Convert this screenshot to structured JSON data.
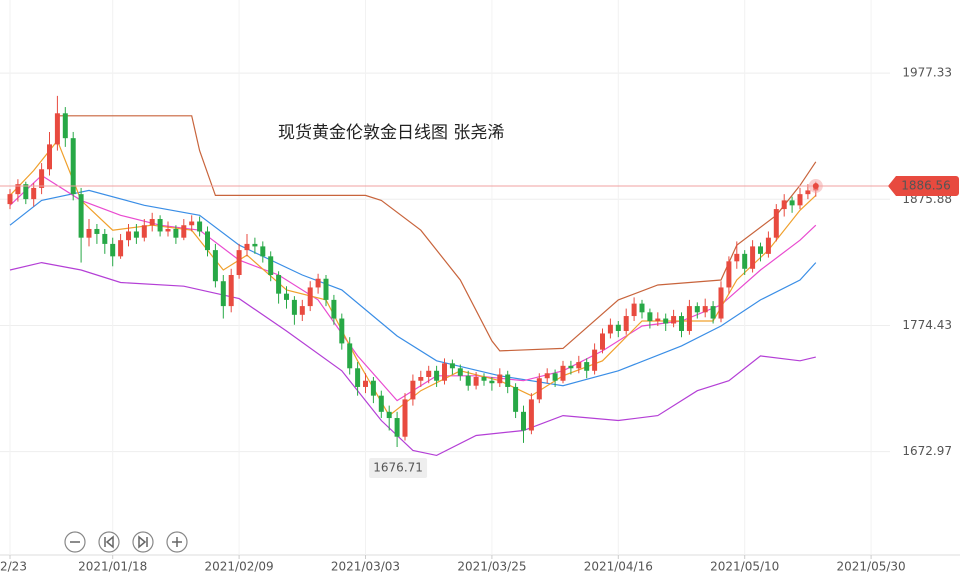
{
  "chart_data": {
    "type": "candlestick",
    "title": "现货黄金伦敦金日线图 张尧浠",
    "categories": [
      "2/23",
      null,
      null,
      null,
      null,
      null,
      null,
      null,
      null,
      null,
      null,
      null,
      null,
      "2021/01/18",
      null,
      null,
      null,
      null,
      null,
      null,
      null,
      null,
      null,
      null,
      null,
      null,
      null,
      null,
      null,
      "2021/02/09",
      null,
      null,
      null,
      null,
      null,
      null,
      null,
      null,
      null,
      null,
      null,
      null,
      null,
      null,
      null,
      "2021/03/03",
      null,
      null,
      null,
      null,
      null,
      null,
      null,
      null,
      null,
      null,
      null,
      null,
      null,
      null,
      null,
      "2021/03/25",
      null,
      null,
      null,
      null,
      null,
      null,
      null,
      null,
      null,
      null,
      null,
      null,
      null,
      null,
      null,
      "2021/04/16",
      null,
      null,
      null,
      null,
      null,
      null,
      null,
      null,
      null,
      null,
      null,
      null,
      null,
      null,
      null,
      "2021/05/10",
      null,
      null,
      null,
      null,
      null,
      null,
      null,
      null,
      null,
      null,
      null,
      null,
      null,
      null,
      null,
      "2021/05/30"
    ],
    "open": [
      1872,
      1880,
      1888,
      1876,
      1885,
      1900,
      1920,
      1945,
      1925,
      1880,
      1845,
      1852,
      1848,
      1840,
      1830,
      1843,
      1850,
      1845,
      1855,
      1860,
      1850,
      1852,
      1845,
      1855,
      1858,
      1850,
      1835,
      1810,
      1790,
      1815,
      1835,
      1840,
      1838,
      1830,
      1815,
      1800,
      1795,
      1783,
      1790,
      1805,
      1812,
      1795,
      1780,
      1760,
      1740,
      1725,
      1730,
      1718,
      1705,
      1700,
      1685,
      1715,
      1730,
      1733,
      1738,
      1730,
      1744,
      1740,
      1734,
      1726,
      1733,
      1730,
      1728,
      1735,
      1725,
      1705,
      1690,
      1715,
      1732,
      1736,
      1730,
      1742,
      1740,
      1745,
      1738,
      1755,
      1768,
      1775,
      1770,
      1782,
      1792,
      1785,
      1778,
      1780,
      1776,
      1782,
      1770,
      1790,
      1785,
      1790,
      1780,
      1805,
      1826,
      1832,
      1820,
      1838,
      1832,
      1845,
      1868,
      1875,
      1871,
      1880,
      1883,
      null,
      null,
      null,
      null,
      null,
      null,
      null
    ],
    "high": [
      1884,
      1892,
      1890,
      1889,
      1905,
      1930,
      1959,
      1950,
      1930,
      1885,
      1860,
      1856,
      1852,
      1845,
      1848,
      1856,
      1856,
      1860,
      1865,
      1863,
      1858,
      1855,
      1860,
      1863,
      1862,
      1854,
      1840,
      1815,
      1820,
      1840,
      1848,
      1845,
      1842,
      1834,
      1818,
      1806,
      1798,
      1795,
      1810,
      1816,
      1815,
      1799,
      1784,
      1765,
      1745,
      1736,
      1733,
      1722,
      1710,
      1705,
      1720,
      1735,
      1738,
      1742,
      1742,
      1748,
      1747,
      1743,
      1738,
      1737,
      1736,
      1733,
      1740,
      1738,
      1728,
      1710,
      1720,
      1736,
      1740,
      1739,
      1746,
      1746,
      1750,
      1748,
      1760,
      1772,
      1780,
      1778,
      1788,
      1797,
      1795,
      1788,
      1785,
      1784,
      1787,
      1785,
      1795,
      1793,
      1796,
      1794,
      1810,
      1830,
      1842,
      1835,
      1843,
      1841,
      1850,
      1872,
      1880,
      1878,
      1885,
      1888,
      1890,
      null,
      null,
      null,
      null,
      null,
      null,
      null
    ],
    "low": [
      1868,
      1874,
      1872,
      1870,
      1880,
      1895,
      1915,
      1918,
      1875,
      1825,
      1838,
      1840,
      1832,
      1822,
      1828,
      1838,
      1840,
      1842,
      1850,
      1846,
      1846,
      1840,
      1843,
      1850,
      1846,
      1830,
      1805,
      1780,
      1785,
      1812,
      1830,
      1832,
      1825,
      1810,
      1792,
      1788,
      1775,
      1778,
      1786,
      1800,
      1790,
      1775,
      1755,
      1735,
      1718,
      1720,
      1712,
      1700,
      1690,
      1676.71,
      1682,
      1710,
      1725,
      1728,
      1725,
      1727,
      1735,
      1730,
      1722,
      1723,
      1726,
      1722,
      1725,
      1720,
      1700,
      1680,
      1687,
      1712,
      1728,
      1725,
      1728,
      1735,
      1736,
      1732,
      1735,
      1752,
      1764,
      1765,
      1767,
      1778,
      1780,
      1772,
      1774,
      1770,
      1773,
      1765,
      1767,
      1780,
      1781,
      1776,
      1777,
      1800,
      1820,
      1815,
      1817,
      1826,
      1829,
      1842,
      1862,
      1865,
      1868,
      1876,
      1878,
      null,
      null,
      null,
      null,
      null,
      null,
      null
    ],
    "close": [
      1880,
      1888,
      1876,
      1885,
      1900,
      1920,
      1945,
      1925,
      1880,
      1845,
      1852,
      1848,
      1840,
      1830,
      1843,
      1850,
      1845,
      1855,
      1860,
      1850,
      1852,
      1845,
      1855,
      1858,
      1850,
      1835,
      1810,
      1790,
      1815,
      1835,
      1840,
      1838,
      1830,
      1815,
      1800,
      1795,
      1783,
      1790,
      1805,
      1812,
      1795,
      1780,
      1760,
      1740,
      1725,
      1730,
      1718,
      1705,
      1700,
      1685,
      1715,
      1730,
      1733,
      1738,
      1730,
      1744,
      1740,
      1734,
      1726,
      1733,
      1730,
      1728,
      1735,
      1725,
      1705,
      1690,
      1715,
      1732,
      1736,
      1730,
      1742,
      1740,
      1745,
      1738,
      1755,
      1768,
      1775,
      1770,
      1782,
      1792,
      1785,
      1778,
      1780,
      1776,
      1782,
      1770,
      1790,
      1785,
      1790,
      1780,
      1805,
      1826,
      1832,
      1820,
      1838,
      1832,
      1845,
      1868,
      1875,
      1871,
      1880,
      1883,
      1886.56,
      null,
      null,
      null,
      null,
      null,
      null,
      null
    ],
    "up_color": "#e84a3f",
    "down_color": "#27a846",
    "ylim": [
      1610,
      2020
    ],
    "yticks": [
      1977.33,
      1875.88,
      1774.43,
      1672.97
    ],
    "grid": true,
    "lines": [
      {
        "color": "#c8643c",
        "x": [
          6,
          23,
          24,
          26,
          45,
          47,
          52,
          57,
          61,
          62,
          70,
          77,
          82,
          90,
          92,
          97,
          100,
          102
        ],
        "values": [
          1943,
          1943,
          1915,
          1879,
          1879,
          1875,
          1851,
          1811,
          1762,
          1754,
          1756,
          1795,
          1807,
          1811,
          1839,
          1863,
          1887,
          1906
        ]
      },
      {
        "color": "#3a8ee6",
        "x": [
          0,
          4,
          10,
          17,
          24,
          29,
          37,
          42,
          49,
          54,
          62,
          70,
          77,
          85,
          90,
          95,
          100,
          102
        ],
        "values": [
          1855,
          1875,
          1883,
          1871,
          1863,
          1839,
          1815,
          1803,
          1766,
          1746,
          1734,
          1726,
          1738,
          1758,
          1774,
          1795,
          1811,
          1825
        ]
      },
      {
        "color": "#b43fd6",
        "x": [
          0,
          4,
          9,
          14,
          22,
          29,
          35,
          42,
          47,
          51,
          54,
          59,
          65,
          70,
          77,
          82,
          87,
          91,
          95,
          100,
          102
        ],
        "values": [
          1819,
          1825,
          1819,
          1809,
          1806,
          1796,
          1770,
          1738,
          1698,
          1674,
          1670,
          1686,
          1690,
          1702,
          1698,
          1702,
          1722,
          1730,
          1750,
          1746,
          1749
        ]
      },
      {
        "color": "#e94bd0",
        "x": [
          0,
          4,
          9,
          14,
          19,
          24,
          29,
          34,
          39,
          44,
          49,
          54,
          59,
          65,
          70,
          75,
          80,
          85,
          90,
          95,
          100,
          102
        ],
        "values": [
          1871,
          1895,
          1875,
          1863,
          1855,
          1851,
          1827,
          1815,
          1795,
          1750,
          1714,
          1734,
          1734,
          1730,
          1738,
          1754,
          1774,
          1778,
          1791,
          1819,
          1843,
          1855
        ]
      },
      {
        "color": "#f0a02c",
        "x": [
          0,
          3,
          6,
          9,
          13,
          18,
          23,
          27,
          30,
          35,
          40,
          44,
          48,
          52,
          57,
          62,
          66,
          70,
          75,
          80,
          85,
          89,
          92,
          96,
          100,
          102
        ],
        "values": [
          1879,
          1899,
          1923,
          1875,
          1851,
          1855,
          1851,
          1819,
          1831,
          1803,
          1795,
          1746,
          1702,
          1722,
          1738,
          1730,
          1718,
          1734,
          1746,
          1778,
          1778,
          1778,
          1811,
          1835,
          1867,
          1879
        ]
      }
    ]
  }
}
